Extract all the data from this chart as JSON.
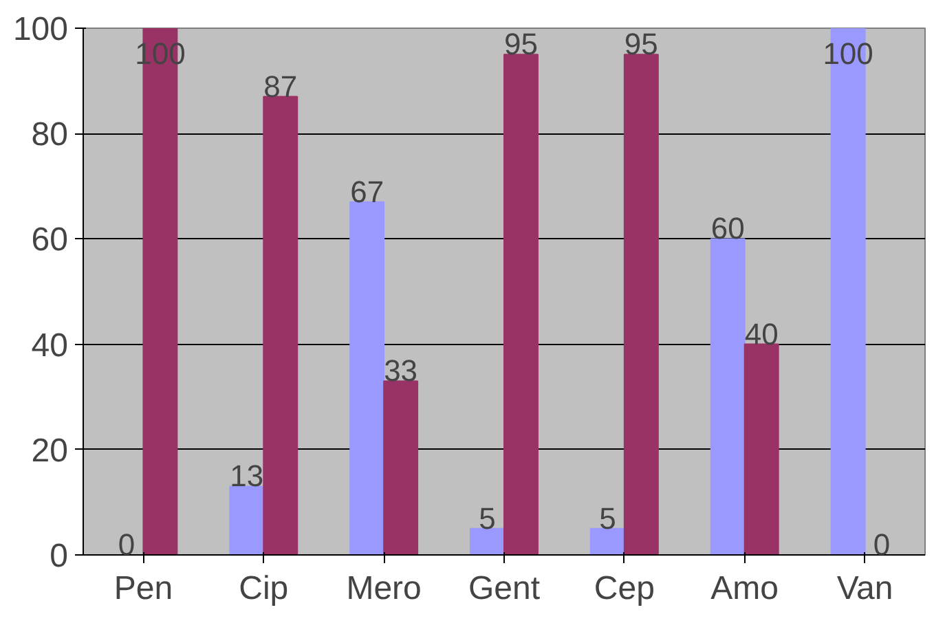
{
  "chart_data": {
    "type": "bar",
    "categories": [
      "Pen",
      "Cip",
      "Mero",
      "Gent",
      "Cep",
      "Amo",
      "Van"
    ],
    "series": [
      {
        "color": "#9999ff",
        "values": [
          0,
          13,
          67,
          5,
          5,
          60,
          100
        ]
      },
      {
        "color": "#993366",
        "values": [
          100,
          87,
          33,
          95,
          95,
          40,
          0
        ]
      }
    ],
    "ylim": [
      0,
      100
    ],
    "yticks": [
      0,
      20,
      40,
      60,
      80,
      100
    ],
    "grid": "y",
    "data_labels": true
  }
}
